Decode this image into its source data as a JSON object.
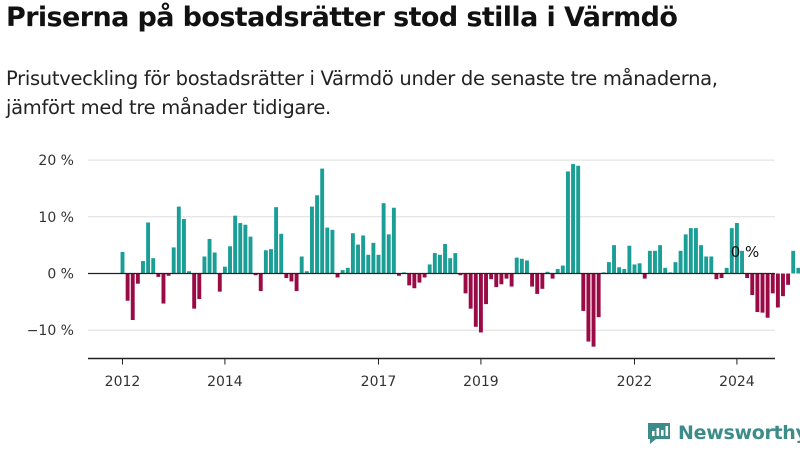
{
  "title": "Priserna på bostadsrätter stod stilla i Värmdö",
  "subtitle": "Prisutveckling för bostadsrätter i Värmdö under de senaste tre månaderna, jämfört med tre månader tidigare.",
  "brand": {
    "name": "Newsworthy",
    "color": "#3c8c8a"
  },
  "colors": {
    "positive": "#1a9e96",
    "negative": "#9a0a45"
  },
  "chart_data": {
    "type": "bar",
    "x_start": "2012-01",
    "x_tick_labels": [
      "2012",
      "2014",
      "2017",
      "2019",
      "2022",
      "2024"
    ],
    "x_tick_index": [
      0,
      20,
      50,
      70,
      100,
      120
    ],
    "y_tick_labels": [
      "20 %",
      "10 %",
      "0 %",
      "−10 %"
    ],
    "y_tick_values": [
      20,
      10,
      0,
      -10
    ],
    "ylim": [
      -14,
      21
    ],
    "annotation": "0 %",
    "grid": true,
    "values": [
      3.8,
      -4.8,
      -8.2,
      -1.8,
      2.2,
      9.0,
      2.7,
      -0.6,
      -5.3,
      -0.4,
      4.6,
      11.8,
      9.6,
      0.4,
      -6.2,
      -4.5,
      3.0,
      6.1,
      3.7,
      -3.2,
      1.2,
      4.8,
      10.2,
      8.9,
      8.6,
      6.5,
      -0.3,
      -3.1,
      4.1,
      4.3,
      11.7,
      7.0,
      -0.8,
      -1.4,
      -3.1,
      3.0,
      0.4,
      11.8,
      13.8,
      18.5,
      8.1,
      7.7,
      -0.7,
      0.6,
      1.0,
      7.1,
      5.1,
      6.7,
      3.3,
      5.4,
      3.3,
      12.4,
      6.9,
      11.6,
      -0.4,
      0.2,
      -2.1,
      -2.6,
      -1.6,
      -0.7,
      1.6,
      3.6,
      3.3,
      5.2,
      2.7,
      3.6,
      -0.3,
      -3.5,
      -6.2,
      -9.4,
      -10.4,
      -5.4,
      -1.0,
      -2.4,
      -1.9,
      -0.9,
      -2.3,
      2.8,
      2.6,
      2.3,
      -2.3,
      -3.6,
      -2.7,
      0.3,
      -0.9,
      0.8,
      1.4,
      18.0,
      19.3,
      19.0,
      -6.6,
      -12.0,
      -12.9,
      -7.7,
      0.2,
      2.0,
      5.0,
      1.1,
      0.8,
      4.9,
      1.6,
      1.8,
      -0.9,
      4.0,
      4.0,
      5.0,
      1.0,
      0.2,
      2.0,
      4.0,
      6.9,
      8.0,
      8.0,
      5.0,
      3.0,
      3.0,
      -1.0,
      -0.8,
      1.0,
      8.0,
      8.9,
      4.0,
      -0.8,
      -3.8,
      -6.8,
      -6.9,
      -7.8,
      -3.5,
      -6.0,
      -4.0,
      -2.0,
      4.0,
      1.0,
      1.7,
      -2.0,
      3.0,
      3.0,
      -4.0,
      -4.8,
      -3.0,
      -3.8,
      -3.8
    ]
  }
}
